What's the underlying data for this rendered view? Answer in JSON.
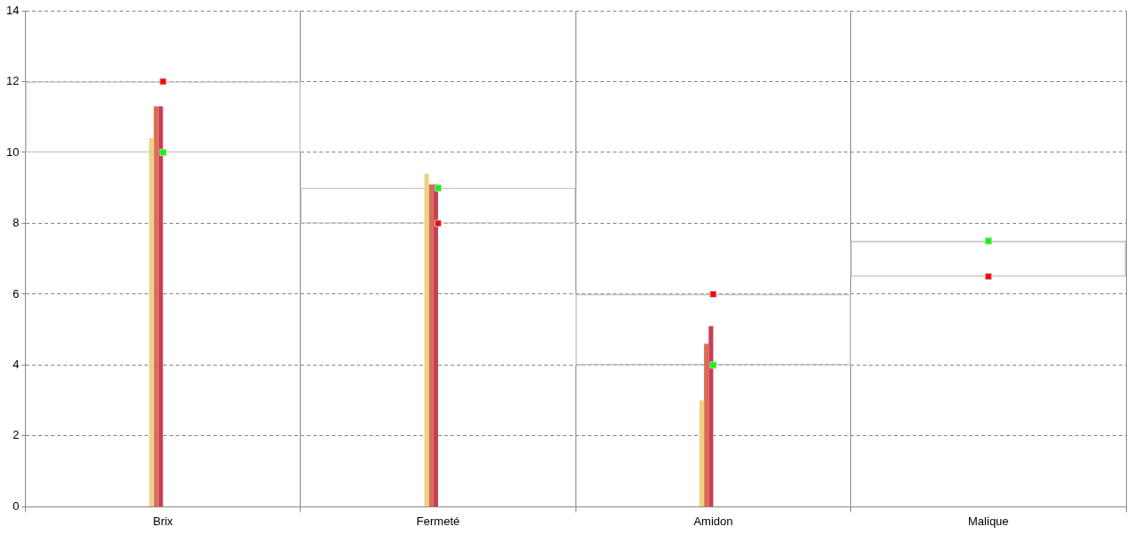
{
  "chart_data": {
    "type": "bar",
    "categories": [
      "Brix",
      "Fermeté",
      "Amidon",
      "Malique"
    ],
    "series": [
      {
        "color": "#ecd283",
        "values": [
          10.4,
          9.4,
          3.0,
          0
        ]
      },
      {
        "color": "#dd6a55",
        "values": [
          11.3,
          9.1,
          4.6,
          0
        ]
      },
      {
        "color": "#c73f55",
        "values": [
          11.3,
          9.1,
          5.1,
          0
        ]
      },
      {
        "type": "bar",
        "color": "#c8c8c8",
        "base": [
          10,
          8,
          4,
          6.5
        ],
        "values": [
          2,
          1,
          2,
          1
        ]
      },
      {
        "type": "scatter",
        "color": "#00ff00",
        "x": [
          "Brix",
          "Fermeté",
          "Amidon",
          "Malique"
        ],
        "values": [
          10,
          9,
          4,
          7.5
        ]
      },
      {
        "type": "scatter",
        "color": "#ff0000",
        "x": [
          "Brix",
          "Fermeté",
          "Amidon",
          "Malique"
        ],
        "values": [
          12,
          8,
          6,
          6.5
        ]
      }
    ],
    "ylim": [
      0,
      14
    ],
    "yticks": [
      0,
      2,
      4,
      6,
      8,
      10,
      12,
      14
    ],
    "grid": true,
    "legend": false,
    "marker": "square"
  }
}
